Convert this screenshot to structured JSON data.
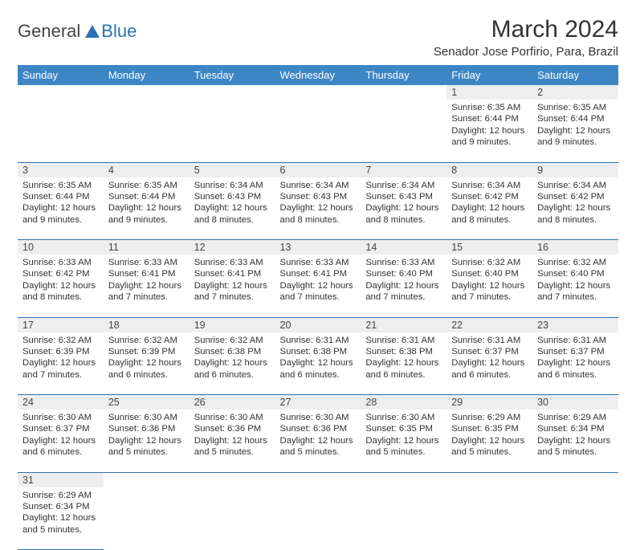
{
  "logo": {
    "general": "General",
    "blue": "Blue"
  },
  "title": "March 2024",
  "location": "Senador Jose Porfirio, Para, Brazil",
  "colors": {
    "header_bg": "#3d86c6",
    "border": "#2a72b5",
    "daynum_bg": "#eeeeee",
    "text": "#333333",
    "logo_blue": "#2a72b5"
  },
  "day_headers": [
    "Sunday",
    "Monday",
    "Tuesday",
    "Wednesday",
    "Thursday",
    "Friday",
    "Saturday"
  ],
  "weeks": [
    [
      null,
      null,
      null,
      null,
      null,
      {
        "n": "1",
        "sr": "6:35 AM",
        "ss": "6:44 PM",
        "dl": "12 hours and 9 minutes."
      },
      {
        "n": "2",
        "sr": "6:35 AM",
        "ss": "6:44 PM",
        "dl": "12 hours and 9 minutes."
      }
    ],
    [
      {
        "n": "3",
        "sr": "6:35 AM",
        "ss": "6:44 PM",
        "dl": "12 hours and 9 minutes."
      },
      {
        "n": "4",
        "sr": "6:35 AM",
        "ss": "6:44 PM",
        "dl": "12 hours and 9 minutes."
      },
      {
        "n": "5",
        "sr": "6:34 AM",
        "ss": "6:43 PM",
        "dl": "12 hours and 8 minutes."
      },
      {
        "n": "6",
        "sr": "6:34 AM",
        "ss": "6:43 PM",
        "dl": "12 hours and 8 minutes."
      },
      {
        "n": "7",
        "sr": "6:34 AM",
        "ss": "6:43 PM",
        "dl": "12 hours and 8 minutes."
      },
      {
        "n": "8",
        "sr": "6:34 AM",
        "ss": "6:42 PM",
        "dl": "12 hours and 8 minutes."
      },
      {
        "n": "9",
        "sr": "6:34 AM",
        "ss": "6:42 PM",
        "dl": "12 hours and 8 minutes."
      }
    ],
    [
      {
        "n": "10",
        "sr": "6:33 AM",
        "ss": "6:42 PM",
        "dl": "12 hours and 8 minutes."
      },
      {
        "n": "11",
        "sr": "6:33 AM",
        "ss": "6:41 PM",
        "dl": "12 hours and 7 minutes."
      },
      {
        "n": "12",
        "sr": "6:33 AM",
        "ss": "6:41 PM",
        "dl": "12 hours and 7 minutes."
      },
      {
        "n": "13",
        "sr": "6:33 AM",
        "ss": "6:41 PM",
        "dl": "12 hours and 7 minutes."
      },
      {
        "n": "14",
        "sr": "6:33 AM",
        "ss": "6:40 PM",
        "dl": "12 hours and 7 minutes."
      },
      {
        "n": "15",
        "sr": "6:32 AM",
        "ss": "6:40 PM",
        "dl": "12 hours and 7 minutes."
      },
      {
        "n": "16",
        "sr": "6:32 AM",
        "ss": "6:40 PM",
        "dl": "12 hours and 7 minutes."
      }
    ],
    [
      {
        "n": "17",
        "sr": "6:32 AM",
        "ss": "6:39 PM",
        "dl": "12 hours and 7 minutes."
      },
      {
        "n": "18",
        "sr": "6:32 AM",
        "ss": "6:39 PM",
        "dl": "12 hours and 6 minutes."
      },
      {
        "n": "19",
        "sr": "6:32 AM",
        "ss": "6:38 PM",
        "dl": "12 hours and 6 minutes."
      },
      {
        "n": "20",
        "sr": "6:31 AM",
        "ss": "6:38 PM",
        "dl": "12 hours and 6 minutes."
      },
      {
        "n": "21",
        "sr": "6:31 AM",
        "ss": "6:38 PM",
        "dl": "12 hours and 6 minutes."
      },
      {
        "n": "22",
        "sr": "6:31 AM",
        "ss": "6:37 PM",
        "dl": "12 hours and 6 minutes."
      },
      {
        "n": "23",
        "sr": "6:31 AM",
        "ss": "6:37 PM",
        "dl": "12 hours and 6 minutes."
      }
    ],
    [
      {
        "n": "24",
        "sr": "6:30 AM",
        "ss": "6:37 PM",
        "dl": "12 hours and 6 minutes."
      },
      {
        "n": "25",
        "sr": "6:30 AM",
        "ss": "6:36 PM",
        "dl": "12 hours and 5 minutes."
      },
      {
        "n": "26",
        "sr": "6:30 AM",
        "ss": "6:36 PM",
        "dl": "12 hours and 5 minutes."
      },
      {
        "n": "27",
        "sr": "6:30 AM",
        "ss": "6:36 PM",
        "dl": "12 hours and 5 minutes."
      },
      {
        "n": "28",
        "sr": "6:30 AM",
        "ss": "6:35 PM",
        "dl": "12 hours and 5 minutes."
      },
      {
        "n": "29",
        "sr": "6:29 AM",
        "ss": "6:35 PM",
        "dl": "12 hours and 5 minutes."
      },
      {
        "n": "30",
        "sr": "6:29 AM",
        "ss": "6:34 PM",
        "dl": "12 hours and 5 minutes."
      }
    ],
    [
      {
        "n": "31",
        "sr": "6:29 AM",
        "ss": "6:34 PM",
        "dl": "12 hours and 5 minutes."
      },
      null,
      null,
      null,
      null,
      null,
      null
    ]
  ],
  "labels": {
    "sunrise": "Sunrise:",
    "sunset": "Sunset:",
    "daylight": "Daylight:"
  }
}
